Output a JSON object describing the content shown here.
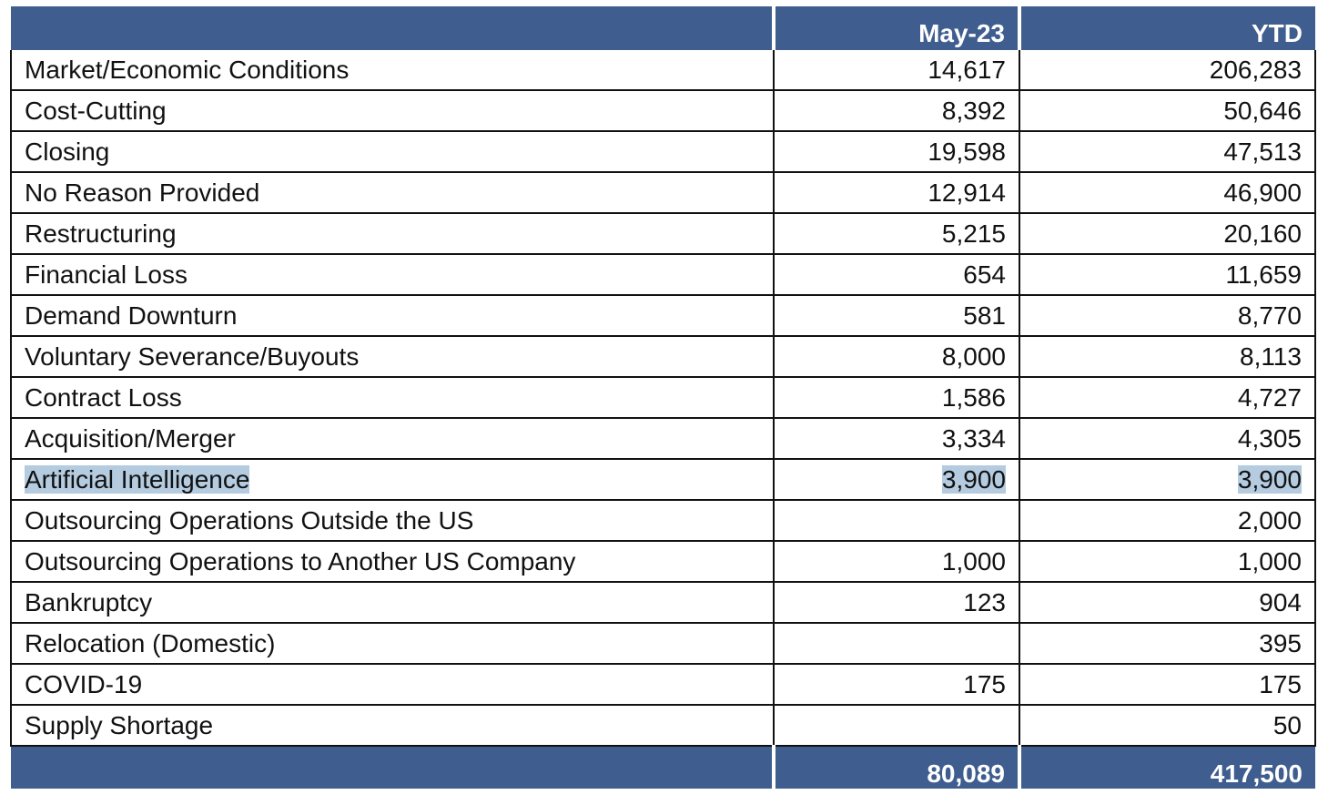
{
  "header": {
    "label": "",
    "month": "May-23",
    "ytd": "YTD"
  },
  "rows": [
    {
      "reason": "Market/Economic Conditions",
      "month": "14,617",
      "ytd": "206,283"
    },
    {
      "reason": "Cost-Cutting",
      "month": "8,392",
      "ytd": "50,646"
    },
    {
      "reason": "Closing",
      "month": "19,598",
      "ytd": "47,513"
    },
    {
      "reason": "No Reason Provided",
      "month": "12,914",
      "ytd": "46,900"
    },
    {
      "reason": "Restructuring",
      "month": "5,215",
      "ytd": "20,160"
    },
    {
      "reason": "Financial Loss",
      "month": "654",
      "ytd": "11,659"
    },
    {
      "reason": "Demand Downturn",
      "month": "581",
      "ytd": "8,770"
    },
    {
      "reason": "Voluntary Severance/Buyouts",
      "month": "8,000",
      "ytd": "8,113"
    },
    {
      "reason": "Contract Loss",
      "month": "1,586",
      "ytd": "4,727"
    },
    {
      "reason": "Acquisition/Merger",
      "month": "3,334",
      "ytd": "4,305"
    },
    {
      "reason": "Artificial Intelligence",
      "month": "3,900",
      "ytd": "3,900",
      "highlighted": true
    },
    {
      "reason": "Outsourcing Operations Outside the US",
      "month": "",
      "ytd": "2,000"
    },
    {
      "reason": "Outsourcing Operations to Another US Company",
      "month": "1,000",
      "ytd": "1,000"
    },
    {
      "reason": "Bankruptcy",
      "month": "123",
      "ytd": "904"
    },
    {
      "reason": "Relocation (Domestic)",
      "month": "",
      "ytd": "395"
    },
    {
      "reason": "COVID-19",
      "month": "175",
      "ytd": "175"
    },
    {
      "reason": "Supply Shortage",
      "month": "",
      "ytd": "50"
    }
  ],
  "totals": {
    "month": "80,089",
    "ytd": "417,500"
  },
  "colors": {
    "header_bg": "#3f5d8f",
    "header_text": "#ffffff",
    "selection_highlight": "#b4cbe0"
  }
}
